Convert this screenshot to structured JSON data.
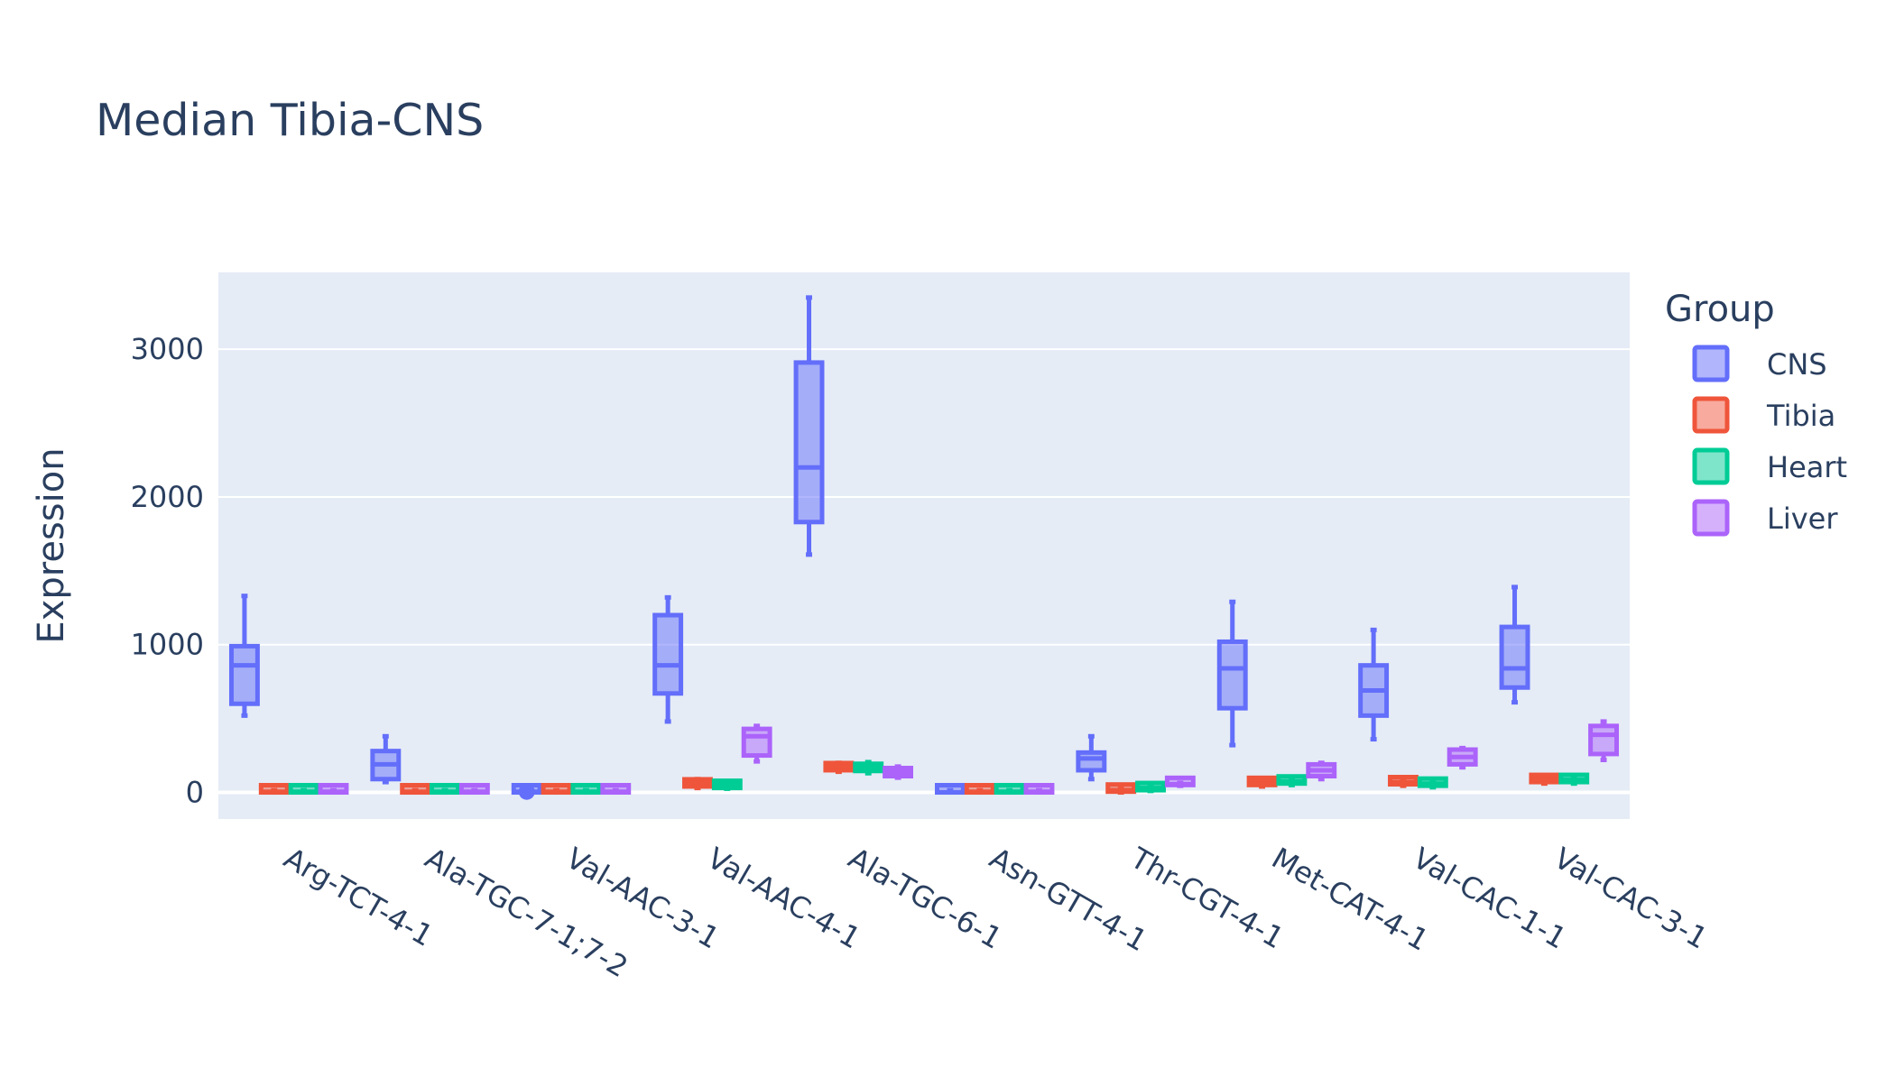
{
  "chart_data": {
    "type": "box",
    "title": "Median Tibia-CNS",
    "xlabel": "",
    "ylabel": "Expression",
    "ylim": [
      -180,
      3520
    ],
    "yticks": [
      0,
      1000,
      2000,
      3000
    ],
    "grid": true,
    "legend": {
      "title": "Group",
      "position": "right"
    },
    "categories": [
      "Arg-TCT-4-1",
      "Ala-TGC-7-1;7-2",
      "Val-AAC-3-1",
      "Val-AAC-4-1",
      "Ala-TGC-6-1",
      "Asn-GTT-4-1",
      "Thr-CGT-4-1",
      "Met-CAT-4-1",
      "Val-CAC-1-1",
      "Val-CAC-3-1"
    ],
    "series": [
      {
        "name": "CNS",
        "color": "#636efa",
        "boxes": [
          {
            "min": 520,
            "q1": 600,
            "median": 860,
            "q3": 990,
            "max": 1330
          },
          {
            "min": 70,
            "q1": 90,
            "median": 190,
            "q3": 280,
            "max": 380
          },
          {
            "min": 0,
            "q1": 0,
            "median": 5,
            "q3": 10,
            "max": 15,
            "outliers": [
              5
            ]
          },
          {
            "min": 480,
            "q1": 670,
            "median": 860,
            "q3": 1200,
            "max": 1320
          },
          {
            "min": 1610,
            "q1": 1830,
            "median": 2200,
            "q3": 2910,
            "max": 3350
          },
          {
            "min": 0,
            "q1": 0,
            "median": 0,
            "q3": 10,
            "max": 15
          },
          {
            "min": 90,
            "q1": 150,
            "median": 230,
            "q3": 270,
            "max": 380
          },
          {
            "min": 320,
            "q1": 570,
            "median": 840,
            "q3": 1020,
            "max": 1290
          },
          {
            "min": 360,
            "q1": 520,
            "median": 690,
            "q3": 860,
            "max": 1100
          },
          {
            "min": 610,
            "q1": 710,
            "median": 840,
            "q3": 1120,
            "max": 1390
          }
        ]
      },
      {
        "name": "Tibia",
        "color": "#EF553B",
        "boxes": [
          {
            "min": 0,
            "q1": 0,
            "median": 5,
            "q3": 10,
            "max": 15
          },
          {
            "min": 0,
            "q1": 0,
            "median": 5,
            "q3": 10,
            "max": 15
          },
          {
            "min": 0,
            "q1": 0,
            "median": 5,
            "q3": 10,
            "max": 15
          },
          {
            "min": 30,
            "q1": 40,
            "median": 65,
            "q3": 80,
            "max": 90
          },
          {
            "min": 140,
            "q1": 150,
            "median": 175,
            "q3": 190,
            "max": 200
          },
          {
            "min": 0,
            "q1": 0,
            "median": 5,
            "q3": 10,
            "max": 15
          },
          {
            "min": 0,
            "q1": 5,
            "median": 15,
            "q3": 30,
            "max": 35
          },
          {
            "min": 40,
            "q1": 50,
            "median": 70,
            "q3": 85,
            "max": 95
          },
          {
            "min": 45,
            "q1": 55,
            "median": 70,
            "q3": 80,
            "max": 90
          },
          {
            "min": 60,
            "q1": 70,
            "median": 90,
            "q3": 105,
            "max": 115
          }
        ]
      },
      {
        "name": "Heart",
        "color": "#00cc96",
        "boxes": [
          {
            "min": 0,
            "q1": 0,
            "median": 5,
            "q3": 10,
            "max": 15
          },
          {
            "min": 0,
            "q1": 0,
            "median": 5,
            "q3": 10,
            "max": 15
          },
          {
            "min": 0,
            "q1": 0,
            "median": 5,
            "q3": 10,
            "max": 15
          },
          {
            "min": 25,
            "q1": 30,
            "median": 50,
            "q3": 60,
            "max": 65
          },
          {
            "min": 130,
            "q1": 145,
            "median": 170,
            "q3": 190,
            "max": 205
          },
          {
            "min": 0,
            "q1": 0,
            "median": 5,
            "q3": 10,
            "max": 15
          },
          {
            "min": 10,
            "q1": 15,
            "median": 30,
            "q3": 40,
            "max": 45
          },
          {
            "min": 50,
            "q1": 60,
            "median": 75,
            "q3": 85,
            "max": 95
          },
          {
            "min": 35,
            "q1": 45,
            "median": 60,
            "q3": 70,
            "max": 80
          },
          {
            "min": 60,
            "q1": 70,
            "median": 85,
            "q3": 100,
            "max": 110
          }
        ]
      },
      {
        "name": "Liver",
        "color": "#ab63fa",
        "boxes": [
          {
            "min": 0,
            "q1": 0,
            "median": 5,
            "q3": 10,
            "max": 15
          },
          {
            "min": 0,
            "q1": 0,
            "median": 5,
            "q3": 10,
            "max": 15
          },
          {
            "min": 0,
            "q1": 0,
            "median": 5,
            "q3": 10,
            "max": 15
          },
          {
            "min": 210,
            "q1": 250,
            "median": 380,
            "q3": 430,
            "max": 450
          },
          {
            "min": 100,
            "q1": 110,
            "median": 140,
            "q3": 165,
            "max": 175
          },
          {
            "min": 0,
            "q1": 0,
            "median": 5,
            "q3": 10,
            "max": 15
          },
          {
            "min": 45,
            "q1": 50,
            "median": 55,
            "q3": 60,
            "max": 65
          },
          {
            "min": 90,
            "q1": 110,
            "median": 150,
            "q3": 190,
            "max": 200
          },
          {
            "min": 170,
            "q1": 190,
            "median": 240,
            "q3": 290,
            "max": 300
          },
          {
            "min": 220,
            "q1": 260,
            "median": 390,
            "q3": 450,
            "max": 480
          }
        ]
      }
    ]
  }
}
